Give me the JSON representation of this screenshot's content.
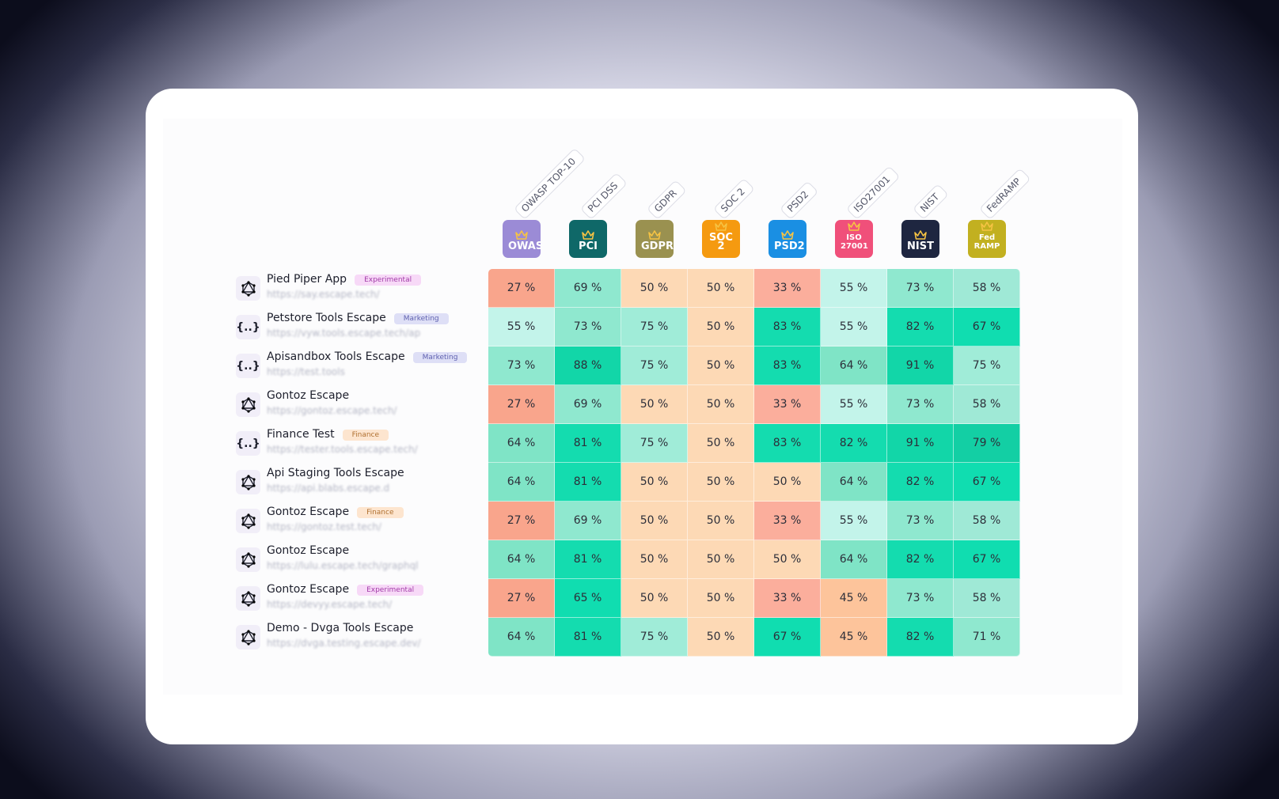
{
  "table": {
    "columns": [
      {
        "label": "OWASP TOP-10",
        "icon": "OWASP",
        "color": "#9b8bd6"
      },
      {
        "label": "PCI DSS",
        "icon": "PCI",
        "color": "#0f6868"
      },
      {
        "label": "GDPR",
        "icon": "GDPR",
        "color": "#9a9150"
      },
      {
        "label": "SOC 2",
        "icon": "SOC 2",
        "color": "#f59a10"
      },
      {
        "label": "PSD2",
        "icon": "PSD2",
        "color": "#1a8fe3"
      },
      {
        "label": "ISO27001",
        "icon": "ISO 27001",
        "color": "#f0507a"
      },
      {
        "label": "NIST",
        "icon": "NIST",
        "color": "#1e2640"
      },
      {
        "label": "FedRAMP",
        "icon": "Fed RAMP",
        "color": "#c2b020"
      }
    ],
    "rows": [
      {
        "name": "Pied Piper App",
        "tag": {
          "text": "Experimental",
          "color": "#a23aa8",
          "background": "#f7d9f7"
        },
        "url": "https://say.escape.tech/",
        "cells": [
          "27 %",
          "69 %",
          "50 %",
          "50 %",
          "33 %",
          "55 %",
          "73 %",
          "58 %"
        ]
      },
      {
        "name": "Petstore Tools Escape",
        "icon": "{..}",
        "tag": {
          "text": "Marketing",
          "color": "#6062b0",
          "background": "#dedff6"
        },
        "url": "https://vyw.tools.escape.tech/ap",
        "cells": [
          "55 %",
          "73 %",
          "75 %",
          "50 %",
          "83 %",
          "55 %",
          "82 %",
          "67 %"
        ]
      },
      {
        "name": "Apisandbox Tools Escape",
        "icon": "{..}",
        "tag": {
          "text": "Marketing",
          "color": "#6062b0",
          "background": "#dedff6"
        },
        "url": "https://test.tools",
        "cells": [
          "73 %",
          "88 %",
          "75 %",
          "50 %",
          "83 %",
          "64 %",
          "91 %",
          "75 %"
        ]
      },
      {
        "name": "Gontoz Escape",
        "url": "https://gontoz.escape.tech/",
        "cells": [
          "27 %",
          "69 %",
          "50 %",
          "50 %",
          "33 %",
          "55 %",
          "73 %",
          "58 %"
        ]
      },
      {
        "name": "Finance Test",
        "icon": "{..}",
        "tag": {
          "text": "Finance",
          "color": "#b07030",
          "background": "#fde5cf"
        },
        "url": "https://tester.tools.escape.tech/",
        "cells": [
          "64 %",
          "81 %",
          "75 %",
          "50 %",
          "83 %",
          "82 %",
          "91 %",
          "79 %"
        ]
      },
      {
        "name": "Api Staging Tools Escape",
        "url": "https://api.blabs.escape.d",
        "cells": [
          "64 %",
          "81 %",
          "50 %",
          "50 %",
          "50 %",
          "64 %",
          "82 %",
          "67 %"
        ]
      },
      {
        "name": "Gontoz Escape",
        "tag": {
          "text": "Finance",
          "color": "#b07030",
          "background": "#fde5cf"
        },
        "url": "https://gontoz.test.tech/",
        "cells": [
          "27 %",
          "69 %",
          "50 %",
          "50 %",
          "33 %",
          "55 %",
          "73 %",
          "58 %"
        ]
      },
      {
        "name": "Gontoz Escape",
        "url": "https://lulu.escape.tech/graphql",
        "cells": [
          "64 %",
          "81 %",
          "50 %",
          "50 %",
          "50 %",
          "64 %",
          "82 %",
          "67 %"
        ]
      },
      {
        "name": "Gontoz Escape",
        "tag": {
          "text": "Experimental",
          "color": "#a23aa8",
          "background": "#f7d9f7"
        },
        "url": "https://devyy.escape.tech/",
        "cells": [
          "27 %",
          "65 %",
          "50 %",
          "50 %",
          "33 %",
          "45 %",
          "73 %",
          "58 %"
        ]
      },
      {
        "name": "Demo - Dvga Tools Escape",
        "url": "https://dvga.testing.escape.dev/",
        "cells": [
          "64 %",
          "81 %",
          "75 %",
          "50 %",
          "67 %",
          "45 %",
          "82 %",
          "71 %"
        ]
      }
    ]
  }
}
